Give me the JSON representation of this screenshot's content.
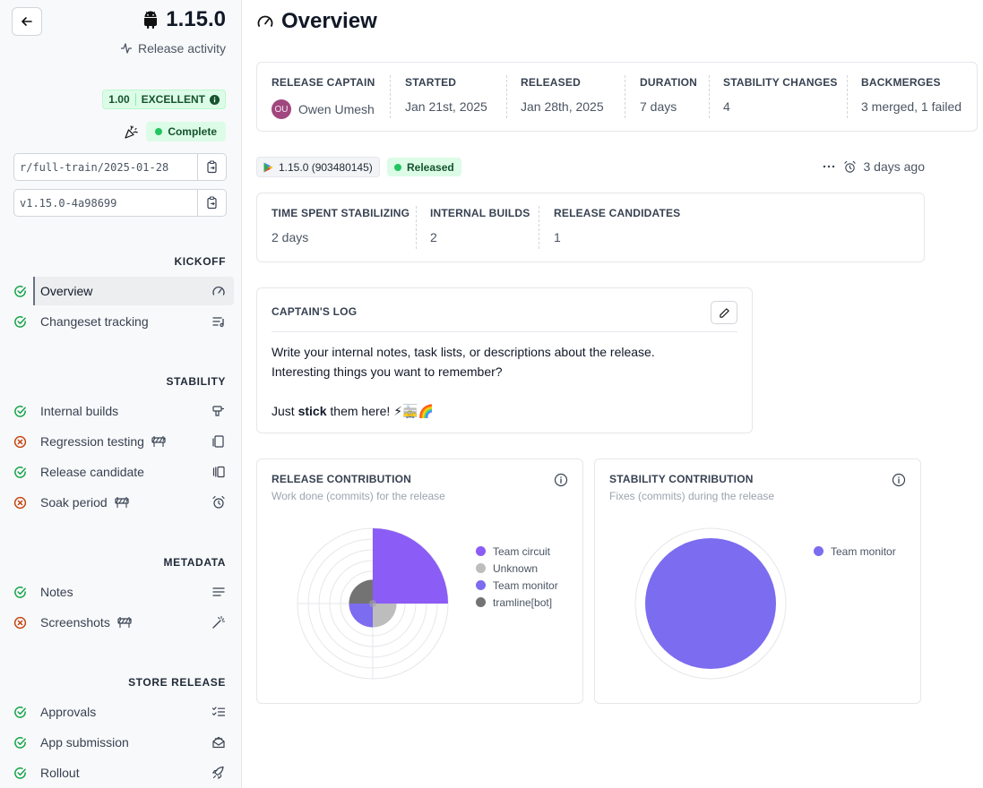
{
  "sidebar": {
    "version": "1.15.0",
    "release_activity": "Release activity",
    "score": "1.00",
    "score_label": "EXCELLENT",
    "status": "Complete",
    "branch": "r/full-train/2025-01-28",
    "tag": "v1.15.0-4a98699",
    "sections": {
      "kickoff": "KICKOFF",
      "stability": "STABILITY",
      "metadata": "METADATA",
      "store_release": "STORE RELEASE"
    },
    "items": [
      {
        "label": "Overview",
        "status": "done",
        "icon": "gauge-icon"
      },
      {
        "label": "Changeset tracking",
        "status": "done",
        "icon": "list-music-icon"
      },
      {
        "label": "Internal builds",
        "status": "done",
        "icon": "drill-icon"
      },
      {
        "label": "Regression testing",
        "status": "skipped",
        "icon": "tablet-icon"
      },
      {
        "label": "Release candidate",
        "status": "done",
        "icon": "gallery-icon"
      },
      {
        "label": "Soak period",
        "status": "skipped",
        "icon": "alarm-icon"
      },
      {
        "label": "Notes",
        "status": "done",
        "icon": "text-icon"
      },
      {
        "label": "Screenshots",
        "status": "skipped",
        "icon": "wand-icon"
      },
      {
        "label": "Approvals",
        "status": "done",
        "icon": "checklist-icon"
      },
      {
        "label": "App submission",
        "status": "done",
        "icon": "mail-open-icon"
      },
      {
        "label": "Rollout",
        "status": "done",
        "icon": "rocket-icon"
      }
    ]
  },
  "main": {
    "title": "Overview",
    "summary": {
      "captain_h": "RELEASE CAPTAIN",
      "captain_initials": "OU",
      "captain": "Owen Umesh",
      "started_h": "STARTED",
      "started": "Jan 21st, 2025",
      "released_h": "RELEASED",
      "released": "Jan 28th, 2025",
      "duration_h": "DURATION",
      "duration": "7 days",
      "stability_h": "STABILITY CHANGES",
      "stability": "4",
      "backmerges_h": "BACKMERGES",
      "backmerges": "3 merged, 1 failed"
    },
    "build": "1.15.0 (903480145)",
    "build_status": "Released",
    "ago": "3 days ago",
    "build_stats": {
      "stabilizing_h": "TIME SPENT STABILIZING",
      "stabilizing": "2 days",
      "internal_h": "INTERNAL BUILDS",
      "internal": "2",
      "rc_h": "RELEASE CANDIDATES",
      "rc": "1"
    },
    "log": {
      "title": "CAPTAIN'S LOG",
      "line1": "Write your internal notes, task lists, or descriptions about the release.",
      "line2": "Interesting things you want to remember?",
      "line3_pre": "Just ",
      "line3_bold": "stick",
      "line3_post": " them here! ⚡🚋🌈"
    }
  },
  "colors": {
    "accent_purple": "#8b5cf6",
    "team_monitor": "#7c6cf0",
    "unknown": "#bdbdbd",
    "bot": "#737373",
    "success": "#22c55e",
    "skip": "#c2410c"
  },
  "chart_data": [
    {
      "type": "pie",
      "title": "RELEASE CONTRIBUTION",
      "subtitle": "Work done (commits) for the release",
      "polar": true,
      "categories": [
        "Team circuit",
        "Unknown",
        "Team monitor",
        "tramline[bot]"
      ],
      "values": [
        10,
        1,
        1,
        1
      ],
      "colors": [
        "#8b5cf6",
        "#bdbdbd",
        "#7c6cf0",
        "#737373"
      ]
    },
    {
      "type": "pie",
      "title": "STABILITY CONTRIBUTION",
      "subtitle": "Fixes (commits) during the release",
      "categories": [
        "Team monitor"
      ],
      "values": [
        4
      ],
      "colors": [
        "#7c6cf0"
      ]
    }
  ]
}
